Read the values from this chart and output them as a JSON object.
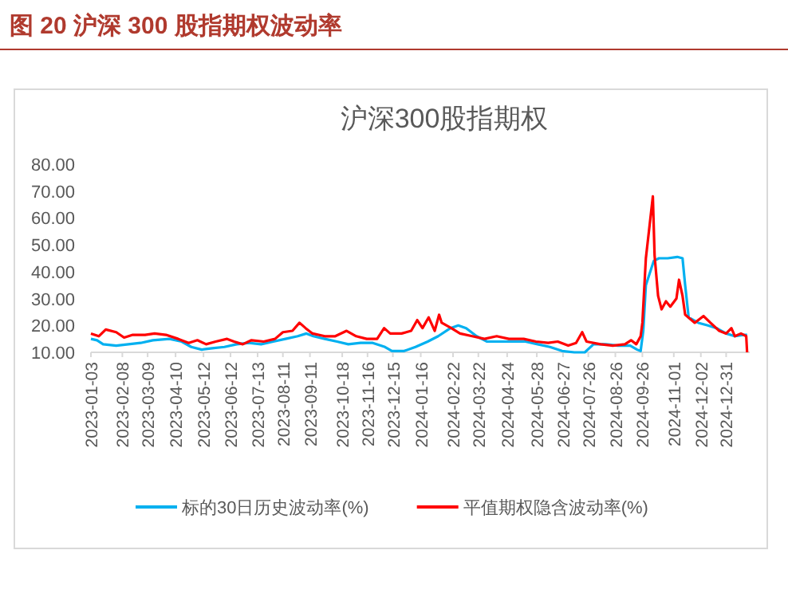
{
  "chart_data": {
    "type": "line",
    "title": "图 20    沪深 300 股指期权波动率",
    "subtitle": "沪深300股指期权",
    "xlim": [
      "2023-01-03",
      "2025-01-27"
    ],
    "ylim": [
      10,
      80
    ],
    "yticks": [
      {
        "value": 10,
        "label": "10.00"
      },
      {
        "value": 20,
        "label": "20.00"
      },
      {
        "value": 30,
        "label": "30.00"
      },
      {
        "value": 40,
        "label": "40.00"
      },
      {
        "value": 50,
        "label": "50.00"
      },
      {
        "value": 60,
        "label": "60.00"
      },
      {
        "value": 70,
        "label": "70.00"
      },
      {
        "value": 80,
        "label": "80.00"
      }
    ],
    "xticks": [
      "2023-01-03",
      "2023-02-08",
      "2023-03-09",
      "2023-04-10",
      "2023-05-12",
      "2023-06-12",
      "2023-07-13",
      "2023-08-11",
      "2023-09-11",
      "2023-10-18",
      "2023-11-16",
      "2023-12-15",
      "2024-01-16",
      "2024-02-22",
      "2024-03-22",
      "2024-04-24",
      "2024-05-28",
      "2024-06-27",
      "2024-07-26",
      "2024-08-26",
      "2024-09-26",
      "2024-11-01",
      "2024-12-02",
      "2024-12-31"
    ],
    "legend": "bottom",
    "grid": false,
    "series": [
      {
        "name": "标的30日历史波动率(%)",
        "color": "#00b0f0",
        "x": [
          "2023-01-03",
          "2023-01-10",
          "2023-01-17",
          "2023-02-01",
          "2023-02-15",
          "2023-03-01",
          "2023-03-15",
          "2023-04-03",
          "2023-04-17",
          "2023-04-28",
          "2023-05-10",
          "2023-05-22",
          "2023-06-05",
          "2023-06-19",
          "2023-07-03",
          "2023-07-17",
          "2023-07-31",
          "2023-08-14",
          "2023-08-28",
          "2023-09-07",
          "2023-09-15",
          "2023-09-28",
          "2023-10-12",
          "2023-10-25",
          "2023-11-08",
          "2023-11-22",
          "2023-12-06",
          "2023-12-14",
          "2023-12-28",
          "2024-01-10",
          "2024-01-24",
          "2024-02-05",
          "2024-02-19",
          "2024-02-28",
          "2024-03-08",
          "2024-03-20",
          "2024-04-01",
          "2024-04-15",
          "2024-04-29",
          "2024-05-15",
          "2024-05-29",
          "2024-06-12",
          "2024-06-26",
          "2024-07-10",
          "2024-07-22",
          "2024-08-01",
          "2024-08-15",
          "2024-08-29",
          "2024-09-12",
          "2024-09-20",
          "2024-09-24",
          "2024-09-27",
          "2024-09-30",
          "2024-10-09",
          "2024-10-15",
          "2024-10-25",
          "2024-11-05",
          "2024-11-11",
          "2024-11-14",
          "2024-11-18",
          "2024-11-29",
          "2024-12-10",
          "2024-12-20",
          "2024-12-31",
          "2025-01-10",
          "2025-01-20",
          "2025-01-24"
        ],
        "values": [
          15,
          14.5,
          13,
          12.5,
          13,
          13.5,
          14.5,
          15,
          14,
          12,
          11,
          11.5,
          12,
          13,
          13.5,
          13,
          14,
          15,
          16,
          17,
          16,
          15,
          14,
          13,
          13.5,
          13.5,
          12,
          10.5,
          10.5,
          12,
          14,
          16,
          19,
          20,
          19,
          16,
          14,
          14,
          14,
          14,
          13,
          12,
          10.5,
          10,
          10,
          13,
          13,
          12.5,
          12.5,
          11,
          10.5,
          18,
          35,
          44,
          45,
          45,
          45.5,
          45,
          35,
          23,
          21,
          20,
          19,
          17,
          16,
          16.5,
          16.5
        ]
      },
      {
        "name": "平值期权隐含波动率(%)",
        "color": "#ff0000",
        "x": [
          "2023-01-03",
          "2023-01-12",
          "2023-01-20",
          "2023-02-01",
          "2023-02-10",
          "2023-02-20",
          "2023-03-06",
          "2023-03-17",
          "2023-03-30",
          "2023-04-13",
          "2023-04-25",
          "2023-05-05",
          "2023-05-15",
          "2023-05-26",
          "2023-06-08",
          "2023-06-16",
          "2023-06-26",
          "2023-07-06",
          "2023-07-20",
          "2023-08-02",
          "2023-08-11",
          "2023-08-22",
          "2023-08-30",
          "2023-09-06",
          "2023-09-14",
          "2023-09-28",
          "2023-10-10",
          "2023-10-23",
          "2023-11-03",
          "2023-11-15",
          "2023-11-27",
          "2023-12-05",
          "2023-12-12",
          "2023-12-25",
          "2024-01-05",
          "2024-01-12",
          "2024-01-18",
          "2024-01-25",
          "2024-02-01",
          "2024-02-06",
          "2024-02-09",
          "2024-02-20",
          "2024-03-01",
          "2024-03-15",
          "2024-03-29",
          "2024-04-12",
          "2024-04-26",
          "2024-05-13",
          "2024-05-27",
          "2024-06-10",
          "2024-06-21",
          "2024-07-03",
          "2024-07-12",
          "2024-07-19",
          "2024-07-24",
          "2024-08-09",
          "2024-08-23",
          "2024-09-06",
          "2024-09-13",
          "2024-09-19",
          "2024-09-24",
          "2024-09-26",
          "2024-09-30",
          "2024-10-08",
          "2024-10-10",
          "2024-10-14",
          "2024-10-18",
          "2024-10-23",
          "2024-10-28",
          "2024-11-04",
          "2024-11-07",
          "2024-11-11",
          "2024-11-14",
          "2024-11-25",
          "2024-12-05",
          "2024-12-13",
          "2024-12-23",
          "2024-12-31",
          "2025-01-06",
          "2025-01-10",
          "2025-01-17",
          "2025-01-23",
          "2025-01-24"
        ],
        "values": [
          17,
          16,
          18.5,
          17.5,
          15.5,
          16.5,
          16.5,
          17,
          16.5,
          15,
          13.5,
          14.5,
          13,
          14,
          15,
          14,
          13,
          14.5,
          14,
          15,
          17.5,
          18,
          21,
          19,
          17,
          16,
          16,
          18,
          16,
          15,
          15,
          19,
          17,
          17,
          18,
          22,
          19,
          23,
          18,
          24,
          21,
          19,
          17,
          16,
          15,
          16,
          15,
          15,
          14,
          13.5,
          14,
          12.5,
          13.5,
          17.5,
          14,
          13,
          12.5,
          13,
          14.5,
          13,
          16,
          21,
          45,
          68,
          46,
          31,
          26,
          29,
          27,
          30,
          37,
          31,
          24,
          21,
          23.5,
          21,
          18,
          17,
          19,
          16,
          17,
          16,
          10
        ]
      }
    ]
  }
}
